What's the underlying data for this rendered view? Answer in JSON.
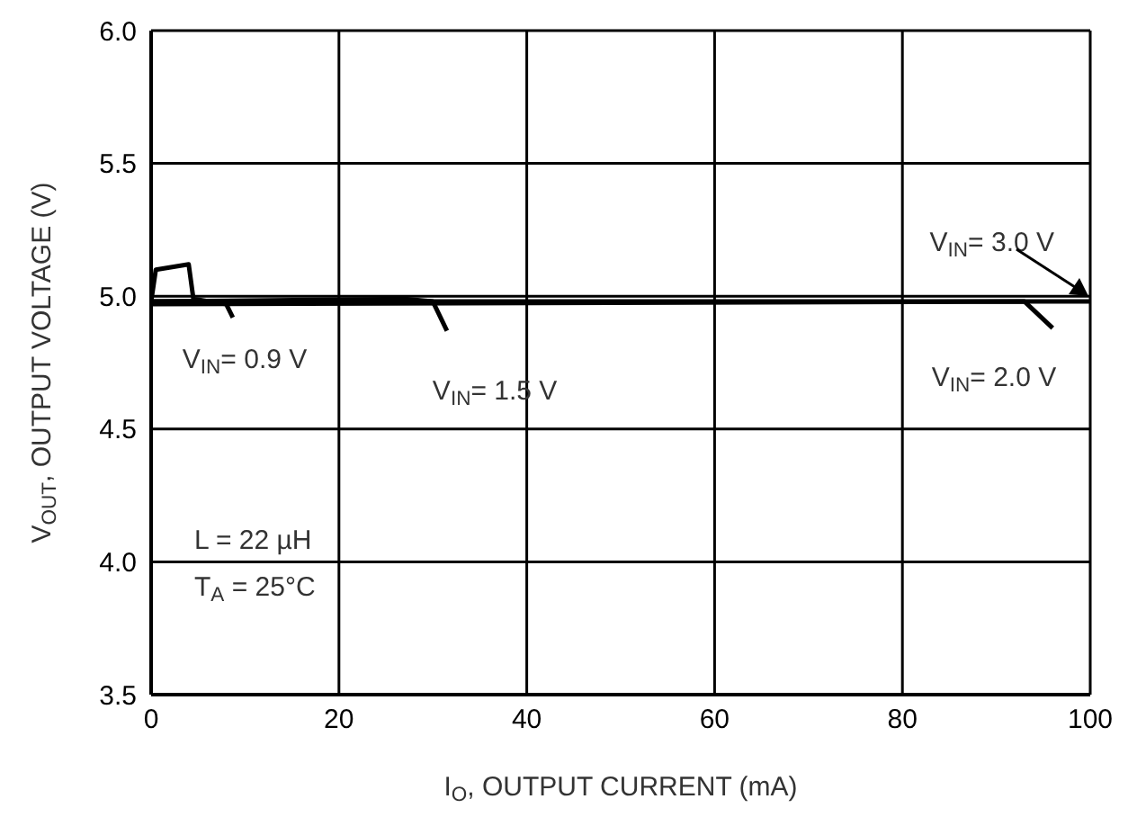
{
  "chart_data": {
    "type": "line",
    "xlabel": "I$_{O}$, OUTPUT CURRENT (mA)",
    "ylabel": "V$_{OUT}$, OUTPUT VOLTAGE (V)",
    "xlim": [
      0,
      100
    ],
    "xticks": [
      0,
      20,
      40,
      60,
      80,
      100
    ],
    "ylim": [
      3.5,
      6.0
    ],
    "yticks": [
      3.5,
      {
        "value": 4.0,
        "label": "4.0"
      },
      4.5,
      {
        "value": 5.0,
        "label": "5.0"
      },
      5.5,
      {
        "value": 6.0,
        "label": "6.0"
      }
    ],
    "grid": true,
    "legend": false,
    "marker": "none",
    "line_style": "solid",
    "series": [
      {
        "name": "V$_{IN}$= 0.9 V",
        "color": "#000000",
        "x": [
          0,
          0.5,
          4,
          4.5,
          8,
          8.7
        ],
        "values": [
          4.98,
          5.1,
          5.12,
          4.99,
          4.97,
          4.92
        ]
      },
      {
        "name": "V$_{IN}$= 1.5 V",
        "color": "#000000",
        "x": [
          0,
          27,
          30,
          31.5
        ],
        "values": [
          4.98,
          4.99,
          4.98,
          4.87
        ]
      },
      {
        "name": "V$_{IN}$= 2.0 V",
        "color": "#000000",
        "x": [
          0,
          93,
          96
        ],
        "values": [
          4.97,
          4.98,
          4.88
        ]
      },
      {
        "name": "V$_{IN}$= 3.0 V",
        "color": "#000000",
        "x": [
          0,
          100
        ],
        "values": [
          4.98,
          4.98
        ]
      }
    ],
    "annotations": [
      "L = 22 µH",
      "T$_{A}$ = 25°C"
    ]
  }
}
